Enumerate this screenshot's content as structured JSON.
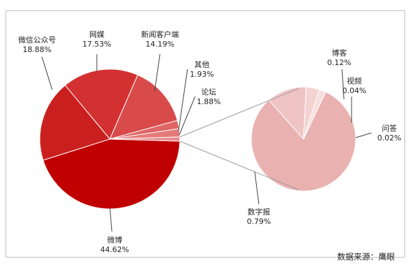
{
  "chart_data": {
    "type": "pie",
    "subtype": "pie-of-pie",
    "main_slices": [
      {
        "label": "微博",
        "value": 44.62,
        "value_label": "44.62%",
        "color": "#c00000"
      },
      {
        "label": "微信公众号",
        "value": 18.88,
        "value_label": "18.88%",
        "color": "#c9201f"
      },
      {
        "label": "网媒",
        "value": 17.53,
        "value_label": "17.53%",
        "color": "#d33131"
      },
      {
        "label": "新闻客户端",
        "value": 14.19,
        "value_label": "14.19%",
        "color": "#d94b4b"
      },
      {
        "label": "其他",
        "value": 1.93,
        "value_label": "1.93%",
        "color": "#df6565"
      },
      {
        "label": "论坛",
        "value": 1.88,
        "value_label": "1.88%",
        "color": "#e47a7a"
      }
    ],
    "secondary_slices": [
      {
        "label": "数字报",
        "value": 0.79,
        "value_label": "0.79%",
        "color": "#eab1b1"
      },
      {
        "label": "博客",
        "value": 0.12,
        "value_label": "0.12%",
        "color": "#f0c4c4"
      },
      {
        "label": "视频",
        "value": 0.04,
        "value_label": "0.04%",
        "color": "#f4d3d3"
      },
      {
        "label": "问答",
        "value": 0.02,
        "value_label": "0.02%",
        "color": "#f7dfdf"
      }
    ],
    "source": "数据来源：鹰眼"
  }
}
